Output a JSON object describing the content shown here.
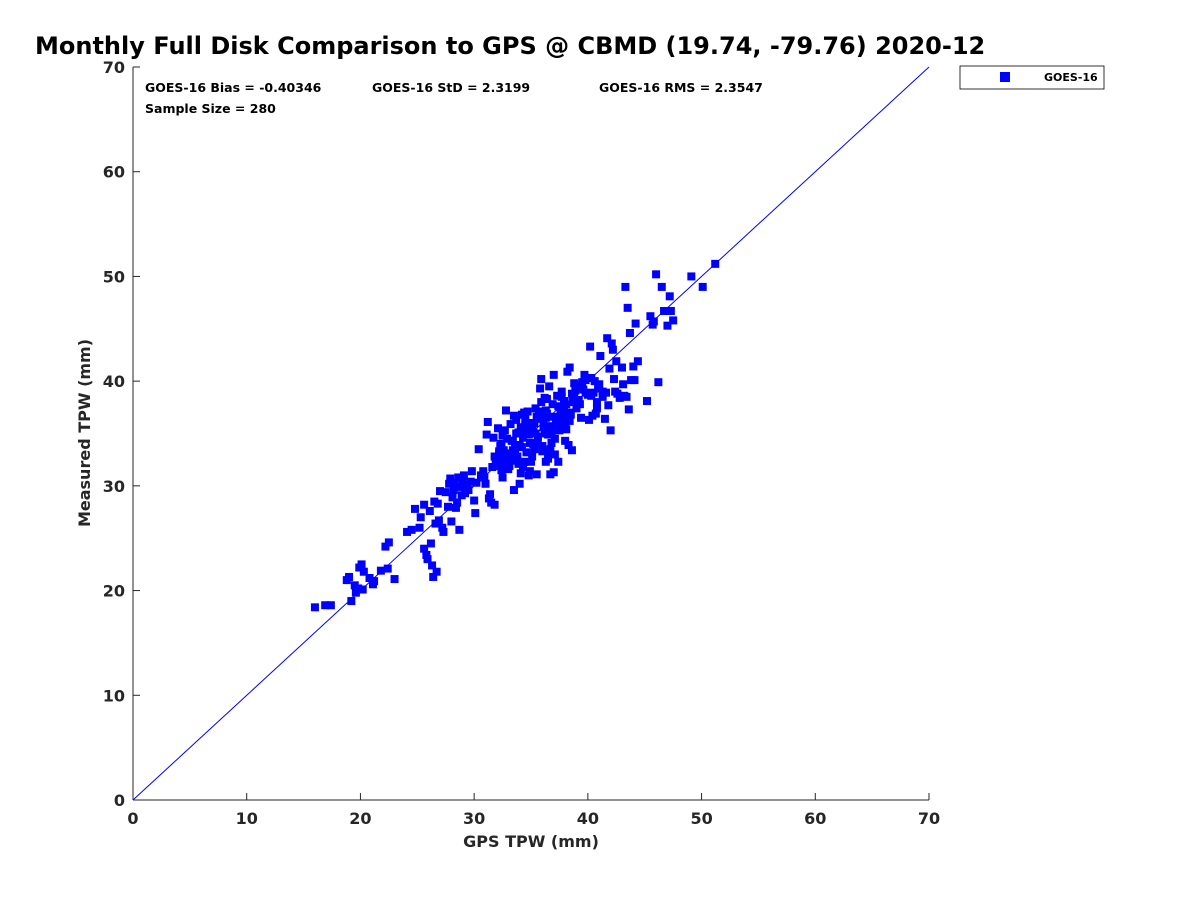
{
  "chart_data": {
    "type": "scatter",
    "title": "Monthly Full Disk Comparison to GPS @ CBMD (19.74, -79.76) 2020-12",
    "xlabel": "GPS TPW (mm)",
    "ylabel": "Measured TPW (mm)",
    "xlim": [
      0,
      70
    ],
    "ylim": [
      0,
      70
    ],
    "xticks": [
      0,
      10,
      20,
      30,
      40,
      50,
      60,
      70
    ],
    "yticks": [
      0,
      10,
      20,
      30,
      40,
      50,
      60,
      70
    ],
    "grid": false,
    "legend_position": "top-right, outside plot",
    "reference_line": {
      "from": [
        0,
        0
      ],
      "to": [
        70,
        70
      ],
      "color": "#0000ff"
    },
    "stats": {
      "bias": "GOES-16 Bias = -0.40346",
      "std": "GOES-16 StD = 2.3199",
      "rms": "GOES-16 RMS = 2.3547",
      "sample": "Sample Size = 280"
    },
    "series": [
      {
        "name": "GOES-16",
        "color": "#0000ff",
        "marker": "square",
        "points": [
          [
            16.0,
            18.4
          ],
          [
            16.9,
            18.6
          ],
          [
            17.4,
            18.6
          ],
          [
            18.8,
            21.0
          ],
          [
            19.0,
            21.3
          ],
          [
            19.2,
            19.0
          ],
          [
            19.5,
            20.5
          ],
          [
            19.6,
            19.8
          ],
          [
            19.8,
            20.2
          ],
          [
            19.9,
            22.2
          ],
          [
            20.1,
            22.5
          ],
          [
            20.2,
            20.1
          ],
          [
            20.3,
            21.8
          ],
          [
            20.8,
            21.2
          ],
          [
            21.1,
            20.6
          ],
          [
            21.2,
            20.9
          ],
          [
            21.8,
            21.9
          ],
          [
            22.2,
            24.2
          ],
          [
            22.4,
            22.1
          ],
          [
            22.5,
            24.6
          ],
          [
            23.0,
            21.1
          ],
          [
            24.1,
            25.6
          ],
          [
            24.5,
            25.8
          ],
          [
            24.8,
            27.8
          ],
          [
            25.3,
            27.0
          ],
          [
            25.6,
            28.2
          ],
          [
            25.6,
            24.0
          ],
          [
            25.8,
            23.4
          ],
          [
            25.9,
            23.0
          ],
          [
            26.1,
            27.6
          ],
          [
            26.2,
            24.5
          ],
          [
            26.3,
            22.4
          ],
          [
            26.4,
            21.3
          ],
          [
            26.5,
            28.5
          ],
          [
            26.7,
            21.8
          ],
          [
            26.8,
            28.3
          ],
          [
            26.9,
            26.7
          ],
          [
            27.0,
            29.5
          ],
          [
            27.2,
            26.0
          ],
          [
            27.3,
            25.6
          ],
          [
            27.5,
            29.4
          ],
          [
            27.8,
            30.2
          ],
          [
            27.9,
            30.7
          ],
          [
            28.0,
            26.6
          ],
          [
            28.1,
            28.9
          ],
          [
            28.2,
            29.6
          ],
          [
            28.3,
            30.3
          ],
          [
            28.4,
            27.9
          ],
          [
            28.5,
            28.4
          ],
          [
            28.6,
            30.8
          ],
          [
            28.7,
            25.8
          ],
          [
            28.8,
            29.9
          ],
          [
            29.0,
            30.5
          ],
          [
            29.1,
            31.0
          ],
          [
            29.2,
            29.3
          ],
          [
            29.4,
            30.1
          ],
          [
            29.5,
            29.6
          ],
          [
            29.8,
            31.4
          ],
          [
            30.0,
            28.6
          ],
          [
            30.1,
            27.4
          ],
          [
            30.2,
            30.3
          ],
          [
            30.4,
            33.5
          ],
          [
            30.6,
            31.0
          ],
          [
            30.8,
            31.4
          ],
          [
            31.0,
            30.2
          ],
          [
            31.1,
            34.9
          ],
          [
            31.2,
            36.1
          ],
          [
            31.3,
            28.8
          ],
          [
            31.4,
            29.2
          ],
          [
            31.5,
            28.4
          ],
          [
            31.7,
            34.6
          ],
          [
            31.8,
            28.2
          ],
          [
            31.9,
            32.3
          ],
          [
            32.0,
            31.9
          ],
          [
            32.1,
            35.5
          ],
          [
            32.2,
            33.1
          ],
          [
            32.3,
            32.6
          ],
          [
            32.4,
            34.0
          ],
          [
            32.5,
            30.8
          ],
          [
            32.6,
            33.4
          ],
          [
            32.6,
            32.0
          ],
          [
            32.7,
            35.3
          ],
          [
            32.8,
            37.2
          ],
          [
            32.9,
            34.5
          ],
          [
            33.0,
            31.6
          ],
          [
            33.1,
            33.1
          ],
          [
            33.2,
            35.9
          ],
          [
            33.3,
            32.4
          ],
          [
            33.4,
            34.3
          ],
          [
            33.5,
            29.6
          ],
          [
            33.6,
            33.6
          ],
          [
            33.7,
            36.3
          ],
          [
            33.8,
            32.8
          ],
          [
            33.9,
            35.1
          ],
          [
            34.0,
            30.2
          ],
          [
            34.0,
            33.9
          ],
          [
            34.1,
            31.2
          ],
          [
            34.2,
            36.8
          ],
          [
            34.3,
            34.6
          ],
          [
            34.4,
            32.3
          ],
          [
            34.5,
            35.8
          ],
          [
            34.6,
            33.2
          ],
          [
            34.7,
            37.1
          ],
          [
            34.8,
            31.0
          ],
          [
            34.9,
            34.1
          ],
          [
            35.0,
            36.0
          ],
          [
            35.1,
            32.8
          ],
          [
            35.2,
            35.2
          ],
          [
            35.3,
            33.5
          ],
          [
            35.4,
            37.4
          ],
          [
            35.5,
            31.1
          ],
          [
            35.6,
            34.7
          ],
          [
            35.7,
            36.4
          ],
          [
            35.8,
            39.3
          ],
          [
            35.9,
            40.2
          ],
          [
            36.0,
            33.8
          ],
          [
            36.1,
            35.6
          ],
          [
            36.2,
            38.4
          ],
          [
            36.3,
            32.3
          ],
          [
            36.4,
            36.9
          ],
          [
            36.5,
            34.9
          ],
          [
            36.6,
            39.5
          ],
          [
            36.7,
            31.1
          ],
          [
            36.8,
            35.7
          ],
          [
            36.9,
            37.8
          ],
          [
            37.0,
            40.6
          ],
          [
            37.1,
            33.0
          ],
          [
            37.2,
            36.2
          ],
          [
            37.3,
            38.6
          ],
          [
            37.4,
            32.3
          ],
          [
            37.5,
            35.3
          ],
          [
            37.6,
            37.3
          ],
          [
            37.7,
            39.0
          ],
          [
            37.8,
            36.6
          ],
          [
            37.9,
            38.1
          ],
          [
            38.0,
            35.9
          ],
          [
            38.1,
            37.8
          ],
          [
            38.2,
            40.9
          ],
          [
            38.3,
            33.9
          ],
          [
            38.4,
            41.3
          ],
          [
            38.5,
            36.8
          ],
          [
            38.6,
            33.4
          ],
          [
            38.7,
            38.0
          ],
          [
            38.8,
            39.8
          ],
          [
            39.0,
            37.4
          ],
          [
            39.2,
            38.2
          ],
          [
            39.4,
            36.5
          ],
          [
            39.6,
            39.2
          ],
          [
            39.8,
            40.1
          ],
          [
            40.0,
            38.7
          ],
          [
            40.1,
            36.3
          ],
          [
            40.2,
            43.3
          ],
          [
            40.3,
            40.3
          ],
          [
            40.5,
            38.9
          ],
          [
            40.7,
            36.9
          ],
          [
            40.8,
            37.4
          ],
          [
            41.0,
            39.7
          ],
          [
            41.1,
            42.4
          ],
          [
            41.3,
            39.0
          ],
          [
            41.5,
            36.4
          ],
          [
            41.7,
            44.1
          ],
          [
            41.8,
            37.7
          ],
          [
            41.9,
            41.2
          ],
          [
            42.0,
            35.3
          ],
          [
            42.1,
            43.6
          ],
          [
            42.2,
            43.0
          ],
          [
            42.4,
            39.0
          ],
          [
            42.5,
            41.9
          ],
          [
            42.6,
            38.8
          ],
          [
            42.8,
            38.4
          ],
          [
            43.0,
            41.3
          ],
          [
            43.1,
            39.7
          ],
          [
            43.2,
            38.6
          ],
          [
            43.3,
            49.0
          ],
          [
            43.5,
            47.0
          ],
          [
            43.6,
            37.3
          ],
          [
            43.7,
            44.6
          ],
          [
            43.8,
            40.1
          ],
          [
            44.0,
            41.4
          ],
          [
            44.2,
            45.5
          ],
          [
            44.4,
            41.9
          ],
          [
            45.2,
            38.1
          ],
          [
            45.5,
            46.2
          ],
          [
            45.7,
            45.4
          ],
          [
            45.8,
            45.7
          ],
          [
            46.0,
            50.2
          ],
          [
            46.2,
            39.9
          ],
          [
            46.5,
            49.0
          ],
          [
            46.7,
            46.7
          ],
          [
            47.0,
            45.3
          ],
          [
            47.2,
            48.1
          ],
          [
            47.3,
            46.7
          ],
          [
            47.5,
            45.8
          ],
          [
            49.1,
            50.0
          ],
          [
            50.1,
            49.0
          ],
          [
            51.2,
            51.2
          ],
          [
            35.0,
            32.3
          ],
          [
            36.0,
            33.3
          ],
          [
            37.0,
            31.3
          ],
          [
            38.0,
            34.3
          ],
          [
            34.5,
            36.4
          ],
          [
            33.7,
            35.0
          ],
          [
            35.3,
            36.0
          ],
          [
            36.3,
            37.2
          ],
          [
            37.3,
            36.5
          ],
          [
            38.3,
            37.0
          ],
          [
            39.3,
            37.8
          ],
          [
            40.3,
            38.6
          ],
          [
            36.7,
            33.5
          ],
          [
            34.3,
            31.8
          ],
          [
            33.3,
            34.3
          ],
          [
            32.3,
            33.8
          ],
          [
            31.8,
            32.8
          ],
          [
            32.8,
            33.0
          ],
          [
            35.8,
            36.8
          ],
          [
            36.8,
            35.2
          ],
          [
            37.8,
            36.0
          ],
          [
            38.8,
            38.4
          ],
          [
            39.8,
            38.9
          ],
          [
            40.8,
            38.0
          ],
          [
            41.3,
            38.5
          ],
          [
            36.2,
            35.0
          ],
          [
            35.6,
            34.2
          ],
          [
            34.8,
            34.9
          ],
          [
            33.9,
            32.1
          ],
          [
            33.4,
            33.4
          ],
          [
            32.9,
            32.4
          ],
          [
            32.4,
            31.5
          ],
          [
            35.9,
            38.0
          ],
          [
            36.4,
            38.3
          ],
          [
            37.6,
            36.9
          ],
          [
            38.1,
            35.4
          ],
          [
            39.1,
            39.4
          ],
          [
            40.6,
            40.0
          ],
          [
            41.6,
            38.9
          ],
          [
            42.3,
            40.2
          ],
          [
            43.4,
            38.5
          ],
          [
            44.1,
            40.1
          ],
          [
            37.1,
            34.5
          ],
          [
            36.6,
            33.2
          ],
          [
            34.2,
            33.7
          ],
          [
            33.2,
            32.6
          ],
          [
            32.2,
            33.3
          ],
          [
            31.6,
            31.8
          ],
          [
            30.9,
            30.8
          ],
          [
            29.7,
            30.4
          ],
          [
            28.9,
            29.1
          ],
          [
            27.7,
            28.0
          ],
          [
            26.6,
            26.4
          ],
          [
            25.2,
            26.0
          ],
          [
            35.1,
            35.8
          ],
          [
            36.1,
            36.1
          ],
          [
            37.4,
            37.6
          ],
          [
            38.6,
            38.8
          ],
          [
            39.4,
            39.6
          ],
          [
            34.6,
            35.1
          ],
          [
            33.6,
            33.0
          ],
          [
            35.4,
            35.0
          ],
          [
            36.9,
            36.6
          ],
          [
            37.9,
            37.2
          ],
          [
            35.7,
            37.1
          ],
          [
            34.1,
            35.6
          ],
          [
            33.1,
            31.9
          ],
          [
            32.5,
            34.8
          ],
          [
            36.5,
            32.6
          ],
          [
            37.7,
            38.5
          ],
          [
            38.4,
            36.2
          ],
          [
            39.7,
            40.6
          ],
          [
            40.4,
            36.7
          ],
          [
            35.2,
            34.0
          ],
          [
            36.8,
            34.1
          ],
          [
            34.4,
            37.0
          ],
          [
            33.5,
            36.7
          ],
          [
            38.9,
            39.1
          ],
          [
            37.2,
            35.8
          ],
          [
            36.3,
            36.5
          ],
          [
            35.5,
            36.6
          ],
          [
            34.9,
            31.4
          ],
          [
            39.5,
            39.9
          ],
          [
            40.9,
            39.3
          ]
        ]
      }
    ]
  }
}
